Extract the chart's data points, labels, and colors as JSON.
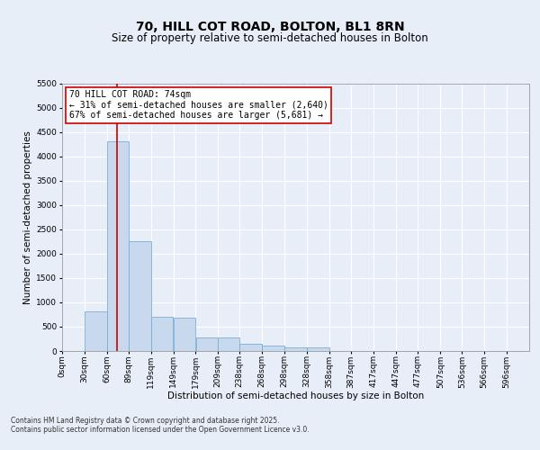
{
  "title": "70, HILL COT ROAD, BOLTON, BL1 8RN",
  "subtitle": "Size of property relative to semi-detached houses in Bolton",
  "xlabel": "Distribution of semi-detached houses by size in Bolton",
  "ylabel": "Number of semi-detached properties",
  "footer_line1": "Contains HM Land Registry data © Crown copyright and database right 2025.",
  "footer_line2": "Contains public sector information licensed under the Open Government Licence v3.0.",
  "annotation_title": "70 HILL COT ROAD: 74sqm",
  "annotation_line1": "← 31% of semi-detached houses are smaller (2,640)",
  "annotation_line2": "67% of semi-detached houses are larger (5,681) →",
  "property_size": 74,
  "bin_labels": [
    "0sqm",
    "30sqm",
    "60sqm",
    "89sqm",
    "119sqm",
    "149sqm",
    "179sqm",
    "209sqm",
    "238sqm",
    "268sqm",
    "298sqm",
    "328sqm",
    "358sqm",
    "387sqm",
    "417sqm",
    "447sqm",
    "477sqm",
    "507sqm",
    "536sqm",
    "566sqm",
    "596sqm"
  ],
  "bin_edges": [
    0,
    30,
    60,
    89,
    119,
    149,
    179,
    209,
    238,
    268,
    298,
    328,
    358,
    387,
    417,
    447,
    477,
    507,
    536,
    566,
    596,
    626
  ],
  "bar_values": [
    0,
    820,
    4300,
    2250,
    700,
    680,
    270,
    270,
    140,
    110,
    80,
    70,
    0,
    0,
    0,
    0,
    0,
    0,
    0,
    0,
    0
  ],
  "bar_color": "#c8d9ee",
  "bar_edge_color": "#7bafd4",
  "vline_color": "#cc0000",
  "vline_x": 74,
  "ylim": [
    0,
    5500
  ],
  "yticks": [
    0,
    500,
    1000,
    1500,
    2000,
    2500,
    3000,
    3500,
    4000,
    4500,
    5000,
    5500
  ],
  "background_color": "#e8eef8",
  "plot_bg_color": "#e8eef8",
  "annotation_box_color": "#ffffff",
  "annotation_box_edge": "#cc0000",
  "title_fontsize": 10,
  "subtitle_fontsize": 8.5,
  "axis_label_fontsize": 7.5,
  "tick_fontsize": 6.5,
  "annotation_fontsize": 7,
  "footer_fontsize": 5.5
}
